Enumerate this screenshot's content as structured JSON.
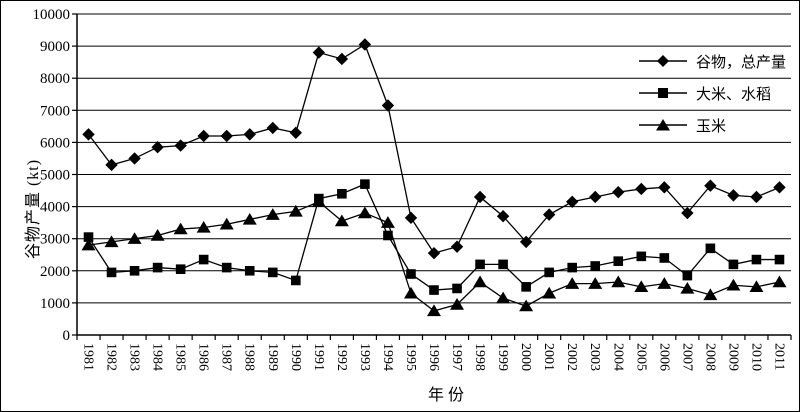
{
  "figure": {
    "background": "#ffffff",
    "border_color": "#000000",
    "ink_color": "#000000"
  },
  "legend": {
    "position": "upper right",
    "items": [
      {
        "label": "谷物，总产量",
        "marker": "diamond"
      },
      {
        "label": "大米、水稻",
        "marker": "square"
      },
      {
        "label": "玉米",
        "marker": "triangle"
      }
    ]
  },
  "chart_data": {
    "type": "line",
    "title": "",
    "xlabel": "年 份",
    "ylabel": "谷物产量 (kt)",
    "ylim": [
      0,
      10000
    ],
    "ytick_step": 1000,
    "grid": "horizontal",
    "legend_position": "upper right",
    "categories": [
      1981,
      1982,
      1983,
      1984,
      1985,
      1986,
      1987,
      1988,
      1989,
      1990,
      1991,
      1992,
      1993,
      1994,
      1995,
      1996,
      1997,
      1998,
      1999,
      2000,
      2001,
      2002,
      2003,
      2004,
      2005,
      2006,
      2007,
      2008,
      2009,
      2010,
      2011
    ],
    "series": [
      {
        "name": "谷物，总产量",
        "marker": "diamond",
        "values": [
          6250,
          5300,
          5500,
          5850,
          5900,
          6200,
          6200,
          6250,
          6450,
          6300,
          8800,
          8600,
          9050,
          7150,
          3650,
          2550,
          2750,
          4300,
          3700,
          2900,
          3750,
          4150,
          4300,
          4450,
          4550,
          4600,
          3800,
          4650,
          4350,
          4300,
          4600
        ]
      },
      {
        "name": "大米、水稻",
        "marker": "square",
        "values": [
          3050,
          1950,
          2000,
          2100,
          2050,
          2350,
          2100,
          2000,
          1950,
          1700,
          4250,
          4400,
          4700,
          3100,
          1900,
          1400,
          1450,
          2200,
          2200,
          1500,
          1950,
          2100,
          2150,
          2300,
          2450,
          2400,
          1850,
          2700,
          2200,
          2350,
          2350
        ]
      },
      {
        "name": "玉米",
        "marker": "triangle",
        "values": [
          2800,
          2900,
          3000,
          3100,
          3300,
          3350,
          3450,
          3600,
          3750,
          3850,
          4150,
          3550,
          3800,
          3500,
          1300,
          750,
          950,
          1650,
          1150,
          900,
          1300,
          1600,
          1600,
          1650,
          1500,
          1600,
          1450,
          1250,
          1550,
          1500,
          1650
        ]
      }
    ]
  }
}
